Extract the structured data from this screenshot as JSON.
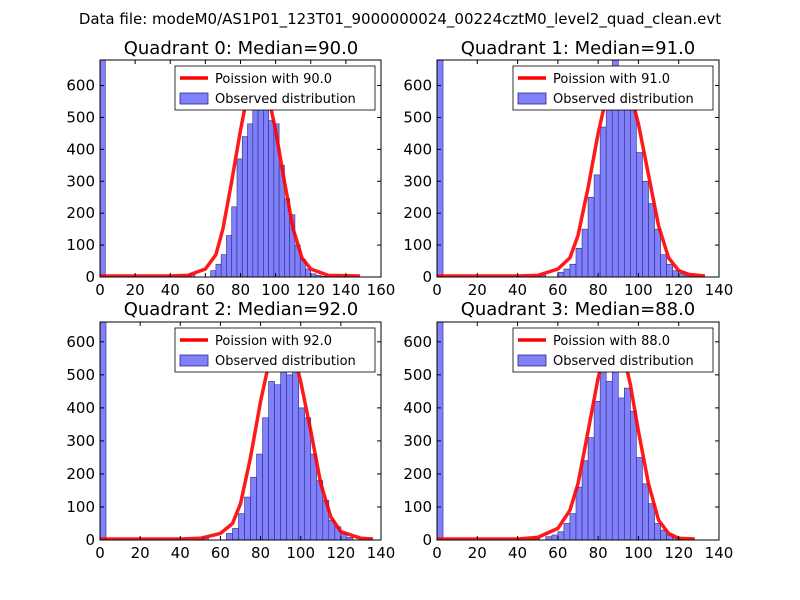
{
  "figure": {
    "suptitle": "Data file: modeM0/AS1P01_123T01_9000000024_00224cztM0_level2_quad_clean.evt"
  },
  "colors": {
    "bar_fill": "#8080f8",
    "bar_edge": "#2b2b8a",
    "fit_line": "#ff0000",
    "axes": "#000000"
  },
  "chart_data": [
    {
      "type": "bar",
      "title": "Quadrant 0: Median=90.0",
      "legend": [
        "Poission with 90.0",
        "Observed distribution"
      ],
      "legend_position": "top-right",
      "xlim": [
        0,
        160
      ],
      "ylim": [
        0,
        680
      ],
      "xticks": [
        0,
        20,
        40,
        60,
        80,
        100,
        120,
        140,
        160
      ],
      "yticks": [
        0,
        100,
        200,
        300,
        400,
        500,
        600
      ],
      "bin_width": 3,
      "observed_bins": [
        [
          0,
          680
        ],
        [
          51,
          8
        ],
        [
          63,
          20
        ],
        [
          66,
          40
        ],
        [
          69,
          70
        ],
        [
          72,
          130
        ],
        [
          75,
          220
        ],
        [
          78,
          370
        ],
        [
          81,
          440
        ],
        [
          84,
          480
        ],
        [
          87,
          630
        ],
        [
          90,
          620
        ],
        [
          93,
          600
        ],
        [
          96,
          490
        ],
        [
          99,
          480
        ],
        [
          102,
          350
        ],
        [
          105,
          245
        ],
        [
          108,
          195
        ],
        [
          111,
          100
        ],
        [
          114,
          55
        ],
        [
          117,
          25
        ],
        [
          120,
          10
        ],
        [
          123,
          5
        ],
        [
          126,
          2
        ]
      ],
      "poisson_curve": [
        [
          0,
          3
        ],
        [
          40,
          3
        ],
        [
          50,
          5
        ],
        [
          60,
          25
        ],
        [
          66,
          70
        ],
        [
          70,
          150
        ],
        [
          75,
          300
        ],
        [
          80,
          460
        ],
        [
          85,
          600
        ],
        [
          90,
          650
        ],
        [
          95,
          590
        ],
        [
          100,
          460
        ],
        [
          105,
          300
        ],
        [
          110,
          150
        ],
        [
          115,
          60
        ],
        [
          120,
          25
        ],
        [
          130,
          5
        ],
        [
          148,
          3
        ]
      ]
    },
    {
      "type": "bar",
      "title": "Quadrant 1: Median=91.0",
      "legend": [
        "Poission with 91.0",
        "Observed distribution"
      ],
      "legend_position": "top-right",
      "xlim": [
        0,
        140
      ],
      "ylim": [
        0,
        680
      ],
      "xticks": [
        0,
        20,
        40,
        60,
        80,
        100,
        120,
        140
      ],
      "yticks": [
        0,
        100,
        200,
        300,
        400,
        500,
        600
      ],
      "bin_width": 3,
      "observed_bins": [
        [
          0,
          680
        ],
        [
          51,
          6
        ],
        [
          60,
          15
        ],
        [
          63,
          25
        ],
        [
          66,
          40
        ],
        [
          69,
          90
        ],
        [
          72,
          150
        ],
        [
          75,
          250
        ],
        [
          78,
          320
        ],
        [
          81,
          470
        ],
        [
          84,
          550
        ],
        [
          87,
          680
        ],
        [
          90,
          530
        ],
        [
          93,
          650
        ],
        [
          96,
          560
        ],
        [
          99,
          390
        ],
        [
          102,
          300
        ],
        [
          105,
          230
        ],
        [
          108,
          150
        ],
        [
          111,
          70
        ],
        [
          114,
          40
        ],
        [
          117,
          20
        ],
        [
          120,
          10
        ],
        [
          123,
          4
        ]
      ],
      "poisson_curve": [
        [
          0,
          3
        ],
        [
          40,
          3
        ],
        [
          50,
          5
        ],
        [
          60,
          25
        ],
        [
          66,
          60
        ],
        [
          70,
          130
        ],
        [
          75,
          280
        ],
        [
          80,
          450
        ],
        [
          85,
          590
        ],
        [
          90,
          650
        ],
        [
          95,
          600
        ],
        [
          100,
          480
        ],
        [
          105,
          320
        ],
        [
          110,
          160
        ],
        [
          115,
          60
        ],
        [
          120,
          20
        ],
        [
          125,
          8
        ],
        [
          133,
          3
        ]
      ]
    },
    {
      "type": "bar",
      "title": "Quadrant 2: Median=92.0",
      "legend": [
        "Poission with 92.0",
        "Observed distribution"
      ],
      "legend_position": "top-right",
      "xlim": [
        0,
        140
      ],
      "ylim": [
        0,
        660
      ],
      "xticks": [
        0,
        20,
        40,
        60,
        80,
        100,
        120,
        140
      ],
      "yticks": [
        0,
        100,
        200,
        300,
        400,
        500,
        600
      ],
      "bin_width": 3,
      "observed_bins": [
        [
          0,
          660
        ],
        [
          51,
          8
        ],
        [
          63,
          20
        ],
        [
          66,
          35
        ],
        [
          69,
          80
        ],
        [
          72,
          130
        ],
        [
          75,
          190
        ],
        [
          78,
          260
        ],
        [
          81,
          370
        ],
        [
          84,
          480
        ],
        [
          87,
          470
        ],
        [
          90,
          610
        ],
        [
          93,
          500
        ],
        [
          96,
          610
        ],
        [
          99,
          400
        ],
        [
          102,
          370
        ],
        [
          105,
          260
        ],
        [
          108,
          180
        ],
        [
          111,
          120
        ],
        [
          114,
          60
        ],
        [
          117,
          40
        ],
        [
          120,
          20
        ],
        [
          123,
          8
        ]
      ],
      "poisson_curve": [
        [
          0,
          3
        ],
        [
          40,
          3
        ],
        [
          50,
          5
        ],
        [
          60,
          20
        ],
        [
          66,
          50
        ],
        [
          70,
          110
        ],
        [
          75,
          250
        ],
        [
          80,
          420
        ],
        [
          85,
          560
        ],
        [
          90,
          630
        ],
        [
          95,
          600
        ],
        [
          100,
          480
        ],
        [
          105,
          330
        ],
        [
          110,
          170
        ],
        [
          115,
          70
        ],
        [
          120,
          25
        ],
        [
          130,
          5
        ],
        [
          136,
          3
        ]
      ]
    },
    {
      "type": "bar",
      "title": "Quadrant 3: Median=88.0",
      "legend": [
        "Poission with 88.0",
        "Observed distribution"
      ],
      "legend_position": "top-right",
      "xlim": [
        0,
        140
      ],
      "ylim": [
        0,
        660
      ],
      "xticks": [
        0,
        20,
        40,
        60,
        80,
        100,
        120,
        140
      ],
      "yticks": [
        0,
        100,
        200,
        300,
        400,
        500,
        600
      ],
      "bin_width": 3,
      "observed_bins": [
        [
          0,
          660
        ],
        [
          48,
          6
        ],
        [
          54,
          10
        ],
        [
          57,
          15
        ],
        [
          60,
          25
        ],
        [
          63,
          50
        ],
        [
          66,
          80
        ],
        [
          69,
          160
        ],
        [
          72,
          240
        ],
        [
          75,
          310
        ],
        [
          78,
          420
        ],
        [
          81,
          600
        ],
        [
          84,
          480
        ],
        [
          87,
          620
        ],
        [
          90,
          430
        ],
        [
          93,
          460
        ],
        [
          96,
          390
        ],
        [
          99,
          250
        ],
        [
          102,
          170
        ],
        [
          105,
          110
        ],
        [
          108,
          50
        ],
        [
          111,
          30
        ],
        [
          114,
          15
        ],
        [
          117,
          8
        ]
      ],
      "poisson_curve": [
        [
          0,
          3
        ],
        [
          40,
          3
        ],
        [
          50,
          8
        ],
        [
          60,
          35
        ],
        [
          66,
          90
        ],
        [
          70,
          170
        ],
        [
          75,
          330
        ],
        [
          80,
          490
        ],
        [
          85,
          610
        ],
        [
          88,
          620
        ],
        [
          92,
          580
        ],
        [
          96,
          470
        ],
        [
          100,
          330
        ],
        [
          105,
          170
        ],
        [
          110,
          60
        ],
        [
          115,
          20
        ],
        [
          120,
          5
        ],
        [
          128,
          3
        ]
      ]
    }
  ]
}
